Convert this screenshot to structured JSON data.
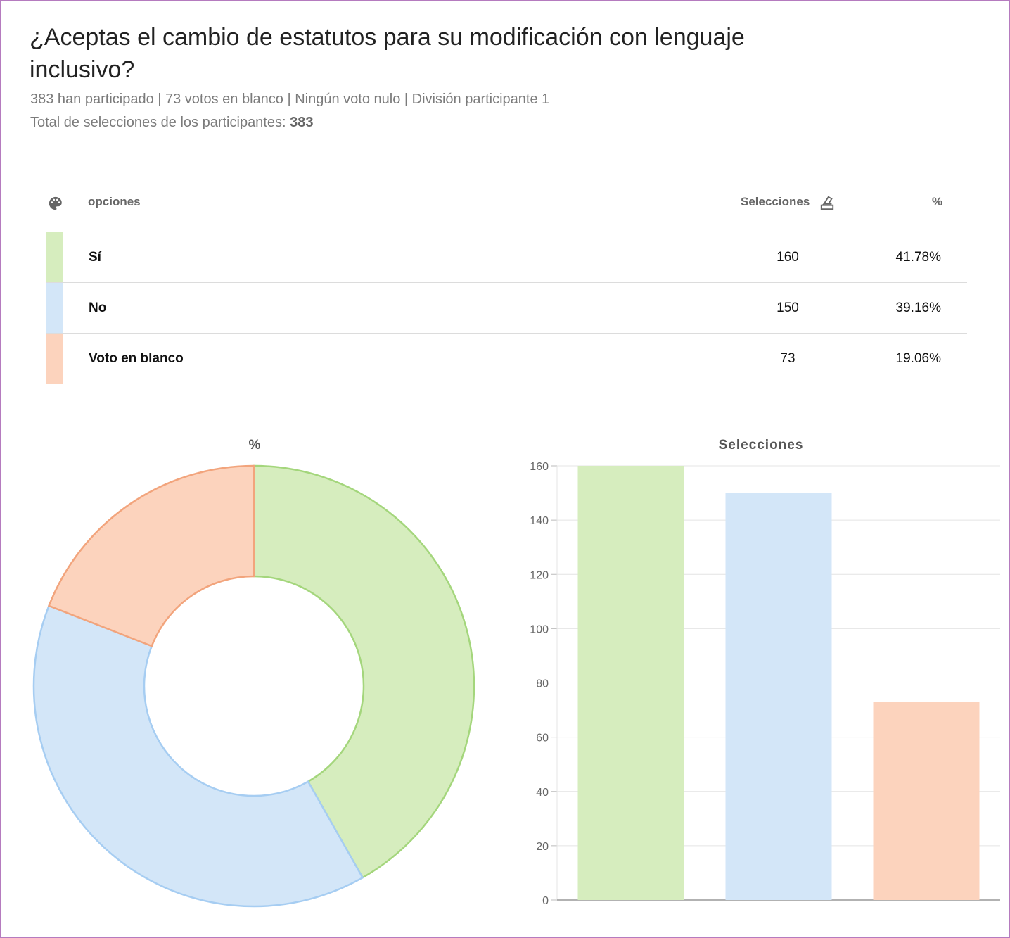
{
  "header": {
    "title": "¿Aceptas el cambio de estatutos para su modificación con lenguaje inclusivo?",
    "subtitle": "383 han participado | 73 votos en blanco | Ningún voto nulo | División participante 1",
    "total_label": "Total de selecciones de los participantes:",
    "total_value": "383"
  },
  "table": {
    "headers": {
      "palette_icon": "palette-icon",
      "options": "opciones",
      "selections": "Selecciones",
      "ballot_icon": "ballot-box-icon",
      "percent": "%"
    },
    "rows": [
      {
        "label": "Sí",
        "count": "160",
        "pct": "41.78%",
        "color": "#d6edbe"
      },
      {
        "label": "No",
        "count": "150",
        "pct": "39.16%",
        "color": "#d3e6f8"
      },
      {
        "label": "Voto en blanco",
        "count": "73",
        "pct": "19.06%",
        "color": "#fcd3bd"
      }
    ]
  },
  "chart_data": [
    {
      "type": "pie",
      "title": "%",
      "donut": true,
      "categories": [
        "Sí",
        "No",
        "Voto en blanco"
      ],
      "values": [
        41.78,
        39.16,
        19.06
      ],
      "fill_colors": [
        "#d6edbe",
        "#d3e6f8",
        "#fcd3bd"
      ],
      "stroke_colors": [
        "#a4d67c",
        "#a6cdf2",
        "#f2a47c"
      ],
      "legend": "none"
    },
    {
      "type": "bar",
      "title": "Selecciones",
      "categories": [
        "Sí",
        "No",
        "Voto en blanco"
      ],
      "values": [
        160,
        150,
        73
      ],
      "colors": [
        "#d6edbe",
        "#d3e6f8",
        "#fcd3bd"
      ],
      "ylim": [
        0,
        160
      ],
      "yticks": [
        0,
        20,
        40,
        60,
        80,
        100,
        120,
        140,
        160
      ],
      "grid": true,
      "xlabel": "",
      "ylabel": "",
      "legend": "none"
    }
  ]
}
